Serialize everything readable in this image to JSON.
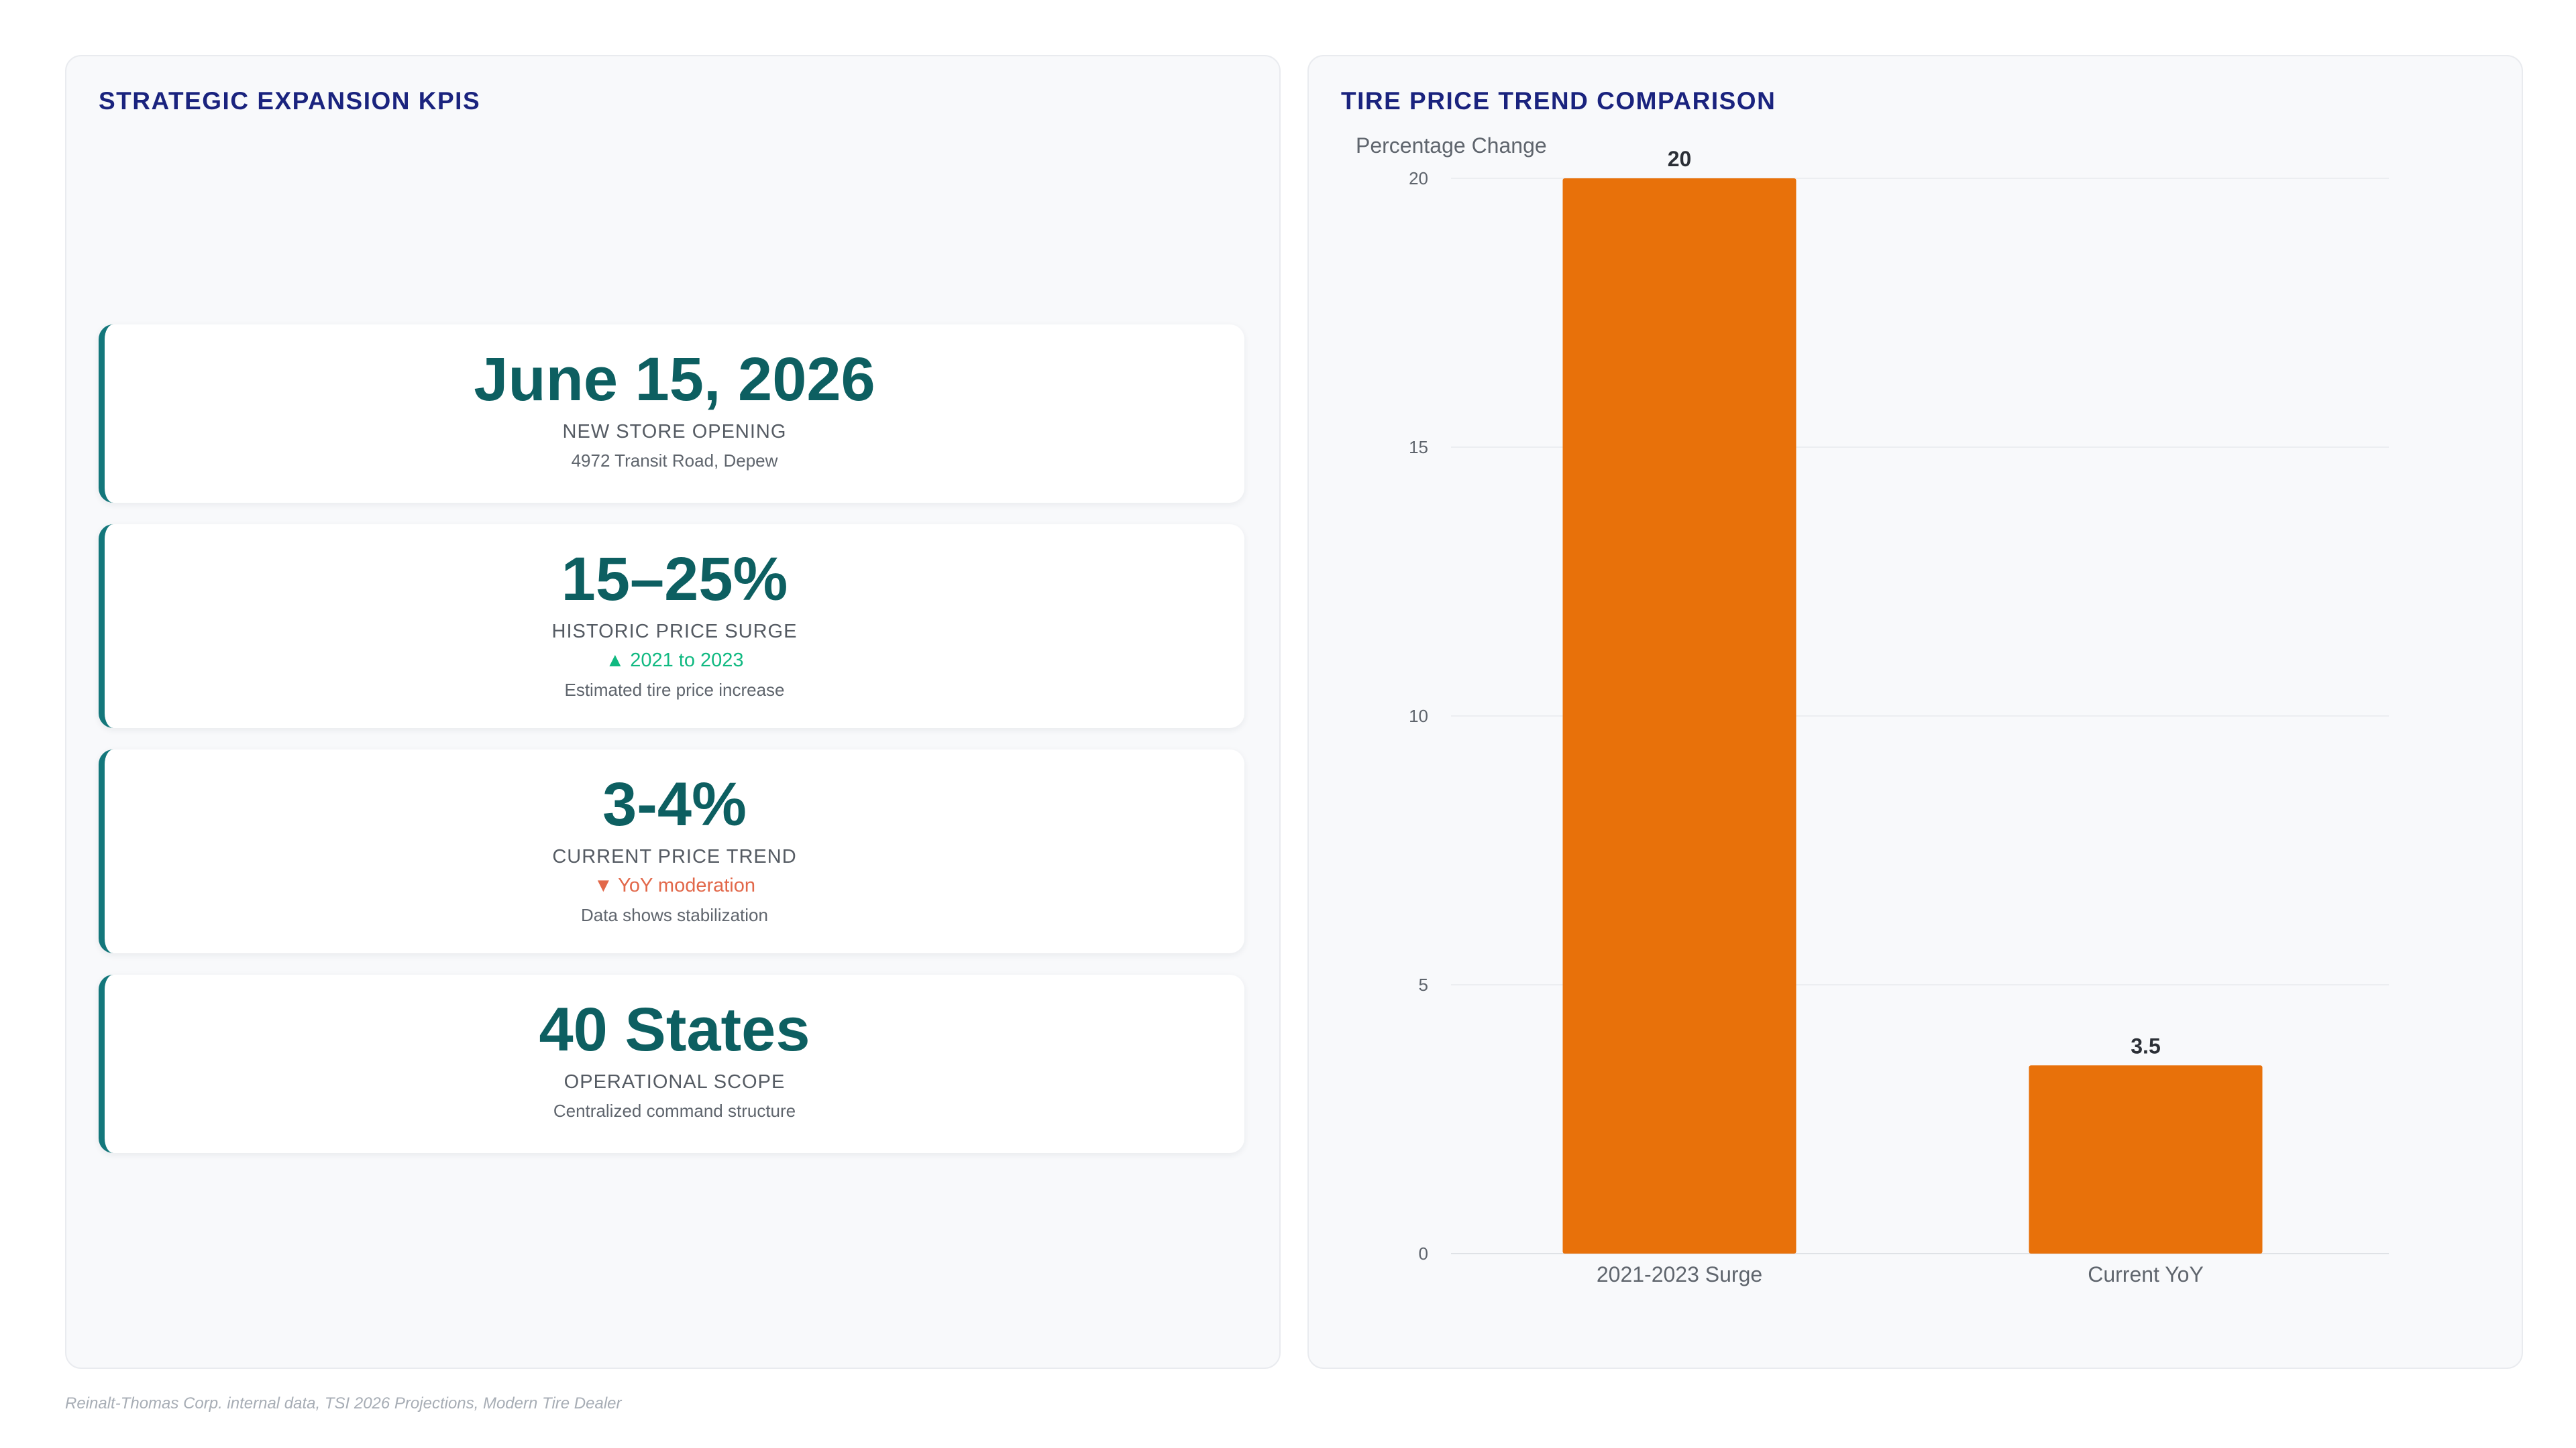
{
  "left_panel": {
    "title": "STRATEGIC EXPANSION KPIS",
    "kpis": [
      {
        "value": "June 15, 2026",
        "label": "NEW STORE OPENING",
        "subtext": "4972 Transit Road, Depew"
      },
      {
        "value": "15–25%",
        "label": "HISTORIC PRICE SURGE",
        "trend": "▲ 2021 to 2023",
        "trend_direction": "up",
        "subtext": "Estimated tire price increase"
      },
      {
        "value": "3-4%",
        "label": "CURRENT PRICE TREND",
        "trend": "▼ YoY moderation",
        "trend_direction": "down",
        "subtext": "Data shows stabilization"
      },
      {
        "value": "40 States",
        "label": "OPERATIONAL SCOPE",
        "subtext": "Centralized command structure"
      }
    ],
    "colors": {
      "accent": "#13777b",
      "value": "#0d5f61",
      "trend_up": "#10b981",
      "trend_down": "#e2684a"
    }
  },
  "right_panel": {
    "title": "TIRE PRICE TREND COMPARISON"
  },
  "chart_data": {
    "type": "bar",
    "title": "",
    "xlabel": "",
    "ylabel": "Percentage Change",
    "categories": [
      "2021-2023 Surge",
      "Current YoY"
    ],
    "values": [
      20,
      3.5
    ],
    "data_labels": [
      "20",
      "3.5"
    ],
    "ylim": [
      0,
      20
    ],
    "yticks": [
      0,
      5,
      10,
      15,
      20
    ],
    "grid": true,
    "legend": "none",
    "bar_color": "#e8710a"
  },
  "footer": {
    "source": "Reinalt-Thomas Corp. internal data, TSI 2026 Projections, Modern Tire Dealer"
  }
}
